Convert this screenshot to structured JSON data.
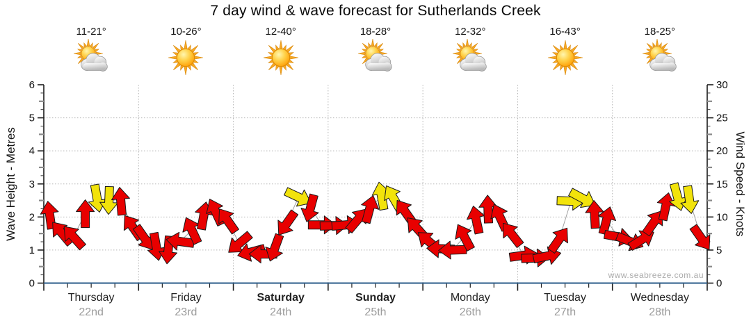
{
  "title": "7 day wind & wave forecast for Sutherlands Creek",
  "watermark": "www.seabreeze.com.au",
  "colors": {
    "arrow_red": "#e80000",
    "arrow_yellow": "#f2e30b",
    "arrow_outline": "#1a1a1a",
    "x_axis_line": "#2b5c8a",
    "grid": "#b4b4b4",
    "axis": "#1a1a1a",
    "date_text": "#9b9b9b",
    "sun_ray": "#f7a823",
    "sun_ray_edge": "#d88a10",
    "cloud_edge": "#949494"
  },
  "left_axis": {
    "label": "Wave Height - Metres",
    "min": 0,
    "max": 6,
    "major_step": 1,
    "minor_step": 0.25
  },
  "right_axis": {
    "label": "Wind Speed - Knots",
    "min": 0,
    "max": 30,
    "major_step": 5,
    "minor_step": 1.25
  },
  "days": [
    {
      "name": "Thursday",
      "date": "22nd",
      "temp": "11-21°",
      "icon": "sun-cloud",
      "bold": false
    },
    {
      "name": "Friday",
      "date": "23rd",
      "temp": "10-26°",
      "icon": "sun",
      "bold": false
    },
    {
      "name": "Saturday",
      "date": "24th",
      "temp": "12-40°",
      "icon": "sun",
      "bold": true
    },
    {
      "name": "Sunday",
      "date": "25th",
      "temp": "18-28°",
      "icon": "sun-cloud",
      "bold": true
    },
    {
      "name": "Monday",
      "date": "26th",
      "temp": "12-32°",
      "icon": "sun-cloud",
      "bold": false
    },
    {
      "name": "Tuesday",
      "date": "27th",
      "temp": "16-43°",
      "icon": "sun",
      "bold": false
    },
    {
      "name": "Wednesday",
      "date": "28th",
      "temp": "18-25°",
      "icon": "sun-cloud",
      "bold": false
    }
  ],
  "chart_data": {
    "type": "scatter",
    "subtype": "wind-direction-arrows",
    "title": "7 day wind & wave forecast for Sutherlands Creek",
    "categories": [
      "Thursday 22nd",
      "Friday 23rd",
      "Saturday 24th",
      "Sunday 25th",
      "Monday 26th",
      "Tuesday 27th",
      "Wednesday 28th"
    ],
    "points_per_day": 8,
    "ylabel_left": "Wave Height - Metres",
    "ylabel_right": "Wind Speed - Knots",
    "ylim_left_metres": [
      0,
      6
    ],
    "ylim_right_knots": [
      0,
      30
    ],
    "grid": "dotted, horizontal each metre, vertical each day boundary",
    "point_format": [
      "knots",
      "direction_deg_pointing",
      "strong_yellow"
    ],
    "wind_points": [
      [
        10.3,
        -8,
        0
      ],
      [
        7.6,
        -40,
        0
      ],
      [
        7.0,
        -42,
        0
      ],
      [
        10.5,
        0,
        0
      ],
      [
        12.8,
        170,
        1
      ],
      [
        12.5,
        182,
        1
      ],
      [
        12.4,
        -5,
        0
      ],
      [
        8.5,
        -35,
        0
      ],
      [
        6.8,
        145,
        0
      ],
      [
        5.5,
        170,
        0
      ],
      [
        5.0,
        185,
        0
      ],
      [
        6.3,
        278,
        0
      ],
      [
        8.0,
        -25,
        0
      ],
      [
        10.2,
        10,
        0
      ],
      [
        10.8,
        -25,
        0
      ],
      [
        9.5,
        -35,
        0
      ],
      [
        6.0,
        230,
        0
      ],
      [
        4.7,
        255,
        0
      ],
      [
        4.4,
        270,
        0
      ],
      [
        5.3,
        200,
        0
      ],
      [
        9.0,
        215,
        0
      ],
      [
        13.0,
        115,
        1
      ],
      [
        11.3,
        195,
        0
      ],
      [
        8.8,
        90,
        0
      ],
      [
        8.7,
        88,
        0
      ],
      [
        8.8,
        85,
        0
      ],
      [
        9.6,
        40,
        0
      ],
      [
        11.2,
        15,
        0
      ],
      [
        13.2,
        -10,
        1
      ],
      [
        12.9,
        -30,
        1
      ],
      [
        10.8,
        -35,
        0
      ],
      [
        8.3,
        -42,
        0
      ],
      [
        6.3,
        -50,
        0
      ],
      [
        5.2,
        272,
        0
      ],
      [
        5.0,
        268,
        0
      ],
      [
        7.0,
        -28,
        0
      ],
      [
        9.6,
        -12,
        0
      ],
      [
        11.2,
        -2,
        0
      ],
      [
        10.0,
        -25,
        0
      ],
      [
        7.4,
        -38,
        0
      ],
      [
        4.2,
        82,
        0
      ],
      [
        3.8,
        88,
        0
      ],
      [
        4.1,
        78,
        0
      ],
      [
        6.6,
        35,
        0
      ],
      [
        12.4,
        92,
        1
      ],
      [
        12.8,
        118,
        1
      ],
      [
        10.4,
        -3,
        0
      ],
      [
        9.5,
        15,
        0
      ],
      [
        7.0,
        100,
        0
      ],
      [
        6.3,
        112,
        0
      ],
      [
        6.6,
        58,
        0
      ],
      [
        9.2,
        35,
        0
      ],
      [
        11.6,
        12,
        0
      ],
      [
        13.0,
        165,
        1
      ],
      [
        12.6,
        172,
        1
      ],
      [
        6.8,
        145,
        0
      ]
    ]
  }
}
